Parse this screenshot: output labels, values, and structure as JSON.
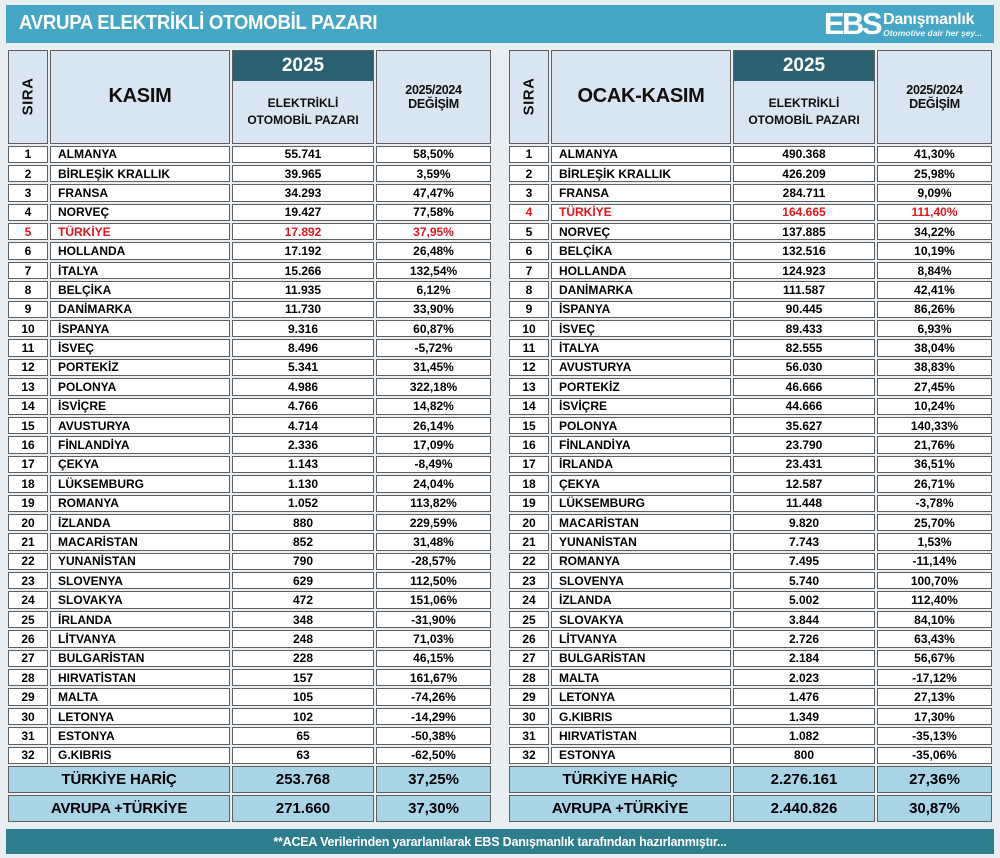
{
  "title": "AVRUPA ELEKTRİKLİ OTOMOBİL PAZARI",
  "logo": {
    "abbrev": "EBS",
    "name": "Danışmanlık",
    "tagline": "Otomotive dair her şey..."
  },
  "footer_note": "**ACEA Verilerinden yararlanılarak  EBS Danışmanlık  tarafından hazırlanmıştır...",
  "colors": {
    "title_bar": "#45a7c5",
    "year_band": "#2b6170",
    "header_cell": "#d9e6f1",
    "total_row": "#a9d4e6",
    "bottom_bar": "#2e7d8d",
    "highlight_red": "#e2151c"
  },
  "chart_data": {
    "type": "table",
    "tables": [
      {
        "period": "KASIM",
        "year": "2025",
        "col_rank": "SIRA",
        "col_market": "ELEKTRİKLİ OTOMOBİL PAZARI",
        "col_change": "2025/2024 DEĞİŞİM",
        "rows": [
          {
            "rank": "1",
            "country": "ALMANYA",
            "value": "55.741",
            "change": "58,50%",
            "highlight": false
          },
          {
            "rank": "2",
            "country": "BİRLEŞİK KRALLIK",
            "value": "39.965",
            "change": "3,59%",
            "highlight": false
          },
          {
            "rank": "3",
            "country": "FRANSA",
            "value": "34.293",
            "change": "47,47%",
            "highlight": false
          },
          {
            "rank": "4",
            "country": "NORVEÇ",
            "value": "19.427",
            "change": "77,58%",
            "highlight": false
          },
          {
            "rank": "5",
            "country": "TÜRKİYE",
            "value": "17.892",
            "change": "37,95%",
            "highlight": true
          },
          {
            "rank": "6",
            "country": "HOLLANDA",
            "value": "17.192",
            "change": "26,48%",
            "highlight": false
          },
          {
            "rank": "7",
            "country": "İTALYA",
            "value": "15.266",
            "change": "132,54%",
            "highlight": false
          },
          {
            "rank": "8",
            "country": "BELÇİKA",
            "value": "11.935",
            "change": "6,12%",
            "highlight": false
          },
          {
            "rank": "9",
            "country": "DANİMARKA",
            "value": "11.730",
            "change": "33,90%",
            "highlight": false
          },
          {
            "rank": "10",
            "country": "İSPANYA",
            "value": "9.316",
            "change": "60,87%",
            "highlight": false
          },
          {
            "rank": "11",
            "country": "İSVEÇ",
            "value": "8.496",
            "change": "-5,72%",
            "highlight": false
          },
          {
            "rank": "12",
            "country": "PORTEKİZ",
            "value": "5.341",
            "change": "31,45%",
            "highlight": false
          },
          {
            "rank": "13",
            "country": "POLONYA",
            "value": "4.986",
            "change": "322,18%",
            "highlight": false
          },
          {
            "rank": "14",
            "country": "İSVİÇRE",
            "value": "4.766",
            "change": "14,82%",
            "highlight": false
          },
          {
            "rank": "15",
            "country": "AVUSTURYA",
            "value": "4.714",
            "change": "26,14%",
            "highlight": false
          },
          {
            "rank": "16",
            "country": "FİNLANDİYA",
            "value": "2.336",
            "change": "17,09%",
            "highlight": false
          },
          {
            "rank": "17",
            "country": "ÇEKYA",
            "value": "1.143",
            "change": "-8,49%",
            "highlight": false
          },
          {
            "rank": "18",
            "country": "LÜKSEMBURG",
            "value": "1.130",
            "change": "24,04%",
            "highlight": false
          },
          {
            "rank": "19",
            "country": "ROMANYA",
            "value": "1.052",
            "change": "113,82%",
            "highlight": false
          },
          {
            "rank": "20",
            "country": "İZLANDA",
            "value": "880",
            "change": "229,59%",
            "highlight": false
          },
          {
            "rank": "21",
            "country": "MACARİSTAN",
            "value": "852",
            "change": "31,48%",
            "highlight": false
          },
          {
            "rank": "22",
            "country": "YUNANİSTAN",
            "value": "790",
            "change": "-28,57%",
            "highlight": false
          },
          {
            "rank": "23",
            "country": "SLOVENYA",
            "value": "629",
            "change": "112,50%",
            "highlight": false
          },
          {
            "rank": "24",
            "country": "SLOVAKYA",
            "value": "472",
            "change": "151,06%",
            "highlight": false
          },
          {
            "rank": "25",
            "country": "İRLANDA",
            "value": "348",
            "change": "-31,90%",
            "highlight": false
          },
          {
            "rank": "26",
            "country": "LİTVANYA",
            "value": "248",
            "change": "71,03%",
            "highlight": false
          },
          {
            "rank": "27",
            "country": "BULGARİSTAN",
            "value": "228",
            "change": "46,15%",
            "highlight": false
          },
          {
            "rank": "28",
            "country": "HIRVATİSTAN",
            "value": "157",
            "change": "161,67%",
            "highlight": false
          },
          {
            "rank": "29",
            "country": "MALTA",
            "value": "105",
            "change": "-74,26%",
            "highlight": false
          },
          {
            "rank": "30",
            "country": "LETONYA",
            "value": "102",
            "change": "-14,29%",
            "highlight": false
          },
          {
            "rank": "31",
            "country": "ESTONYA",
            "value": "65",
            "change": "-50,38%",
            "highlight": false
          },
          {
            "rank": "32",
            "country": "G.KIBRIS",
            "value": "63",
            "change": "-62,50%",
            "highlight": false
          }
        ],
        "totals": [
          {
            "label": "TÜRKİYE HARİÇ",
            "value": "253.768",
            "change": "37,25%"
          },
          {
            "label": "AVRUPA +TÜRKİYE",
            "value": "271.660",
            "change": "37,30%"
          }
        ]
      },
      {
        "period": "OCAK-KASIM",
        "year": "2025",
        "col_rank": "SIRA",
        "col_market": "ELEKTRİKLİ OTOMOBİL PAZARI",
        "col_change": "2025/2024 DEĞİŞİM",
        "rows": [
          {
            "rank": "1",
            "country": "ALMANYA",
            "value": "490.368",
            "change": "41,30%",
            "highlight": false
          },
          {
            "rank": "2",
            "country": "BİRLEŞİK KRALLIK",
            "value": "426.209",
            "change": "25,98%",
            "highlight": false
          },
          {
            "rank": "3",
            "country": "FRANSA",
            "value": "284.711",
            "change": "9,09%",
            "highlight": false
          },
          {
            "rank": "4",
            "country": "TÜRKİYE",
            "value": "164.665",
            "change": "111,40%",
            "highlight": true
          },
          {
            "rank": "5",
            "country": "NORVEÇ",
            "value": "137.885",
            "change": "34,22%",
            "highlight": false
          },
          {
            "rank": "6",
            "country": "BELÇİKA",
            "value": "132.516",
            "change": "10,19%",
            "highlight": false
          },
          {
            "rank": "7",
            "country": "HOLLANDA",
            "value": "124.923",
            "change": "8,84%",
            "highlight": false
          },
          {
            "rank": "8",
            "country": "DANİMARKA",
            "value": "111.587",
            "change": "42,41%",
            "highlight": false
          },
          {
            "rank": "9",
            "country": "İSPANYA",
            "value": "90.445",
            "change": "86,26%",
            "highlight": false
          },
          {
            "rank": "10",
            "country": "İSVEÇ",
            "value": "89.433",
            "change": "6,93%",
            "highlight": false
          },
          {
            "rank": "11",
            "country": "İTALYA",
            "value": "82.555",
            "change": "38,04%",
            "highlight": false
          },
          {
            "rank": "12",
            "country": "AVUSTURYA",
            "value": "56.030",
            "change": "38,83%",
            "highlight": false
          },
          {
            "rank": "13",
            "country": "PORTEKİZ",
            "value": "46.666",
            "change": "27,45%",
            "highlight": false
          },
          {
            "rank": "14",
            "country": "İSVİÇRE",
            "value": "44.666",
            "change": "10,24%",
            "highlight": false
          },
          {
            "rank": "15",
            "country": "POLONYA",
            "value": "35.627",
            "change": "140,33%",
            "highlight": false
          },
          {
            "rank": "16",
            "country": "FİNLANDİYA",
            "value": "23.790",
            "change": "21,76%",
            "highlight": false
          },
          {
            "rank": "17",
            "country": "İRLANDA",
            "value": "23.431",
            "change": "36,51%",
            "highlight": false
          },
          {
            "rank": "18",
            "country": "ÇEKYA",
            "value": "12.587",
            "change": "26,71%",
            "highlight": false
          },
          {
            "rank": "19",
            "country": "LÜKSEMBURG",
            "value": "11.448",
            "change": "-3,78%",
            "highlight": false
          },
          {
            "rank": "20",
            "country": "MACARİSTAN",
            "value": "9.820",
            "change": "25,70%",
            "highlight": false
          },
          {
            "rank": "21",
            "country": "YUNANİSTAN",
            "value": "7.743",
            "change": "1,53%",
            "highlight": false
          },
          {
            "rank": "22",
            "country": "ROMANYA",
            "value": "7.495",
            "change": "-11,14%",
            "highlight": false
          },
          {
            "rank": "23",
            "country": "SLOVENYA",
            "value": "5.740",
            "change": "100,70%",
            "highlight": false
          },
          {
            "rank": "24",
            "country": "İZLANDA",
            "value": "5.002",
            "change": "112,40%",
            "highlight": false
          },
          {
            "rank": "25",
            "country": "SLOVAKYA",
            "value": "3.844",
            "change": "84,10%",
            "highlight": false
          },
          {
            "rank": "26",
            "country": "LİTVANYA",
            "value": "2.726",
            "change": "63,43%",
            "highlight": false
          },
          {
            "rank": "27",
            "country": "BULGARİSTAN",
            "value": "2.184",
            "change": "56,67%",
            "highlight": false
          },
          {
            "rank": "28",
            "country": "MALTA",
            "value": "2.023",
            "change": "-17,12%",
            "highlight": false
          },
          {
            "rank": "29",
            "country": "LETONYA",
            "value": "1.476",
            "change": "27,13%",
            "highlight": false
          },
          {
            "rank": "30",
            "country": "G.KIBRIS",
            "value": "1.349",
            "change": "17,30%",
            "highlight": false
          },
          {
            "rank": "31",
            "country": "HIRVATİSTAN",
            "value": "1.082",
            "change": "-35,13%",
            "highlight": false
          },
          {
            "rank": "32",
            "country": "ESTONYA",
            "value": "800",
            "change": "-35,06%",
            "highlight": false
          }
        ],
        "totals": [
          {
            "label": "TÜRKİYE HARİÇ",
            "value": "2.276.161",
            "change": "27,36%"
          },
          {
            "label": "AVRUPA +TÜRKİYE",
            "value": "2.440.826",
            "change": "30,87%"
          }
        ]
      }
    ]
  }
}
